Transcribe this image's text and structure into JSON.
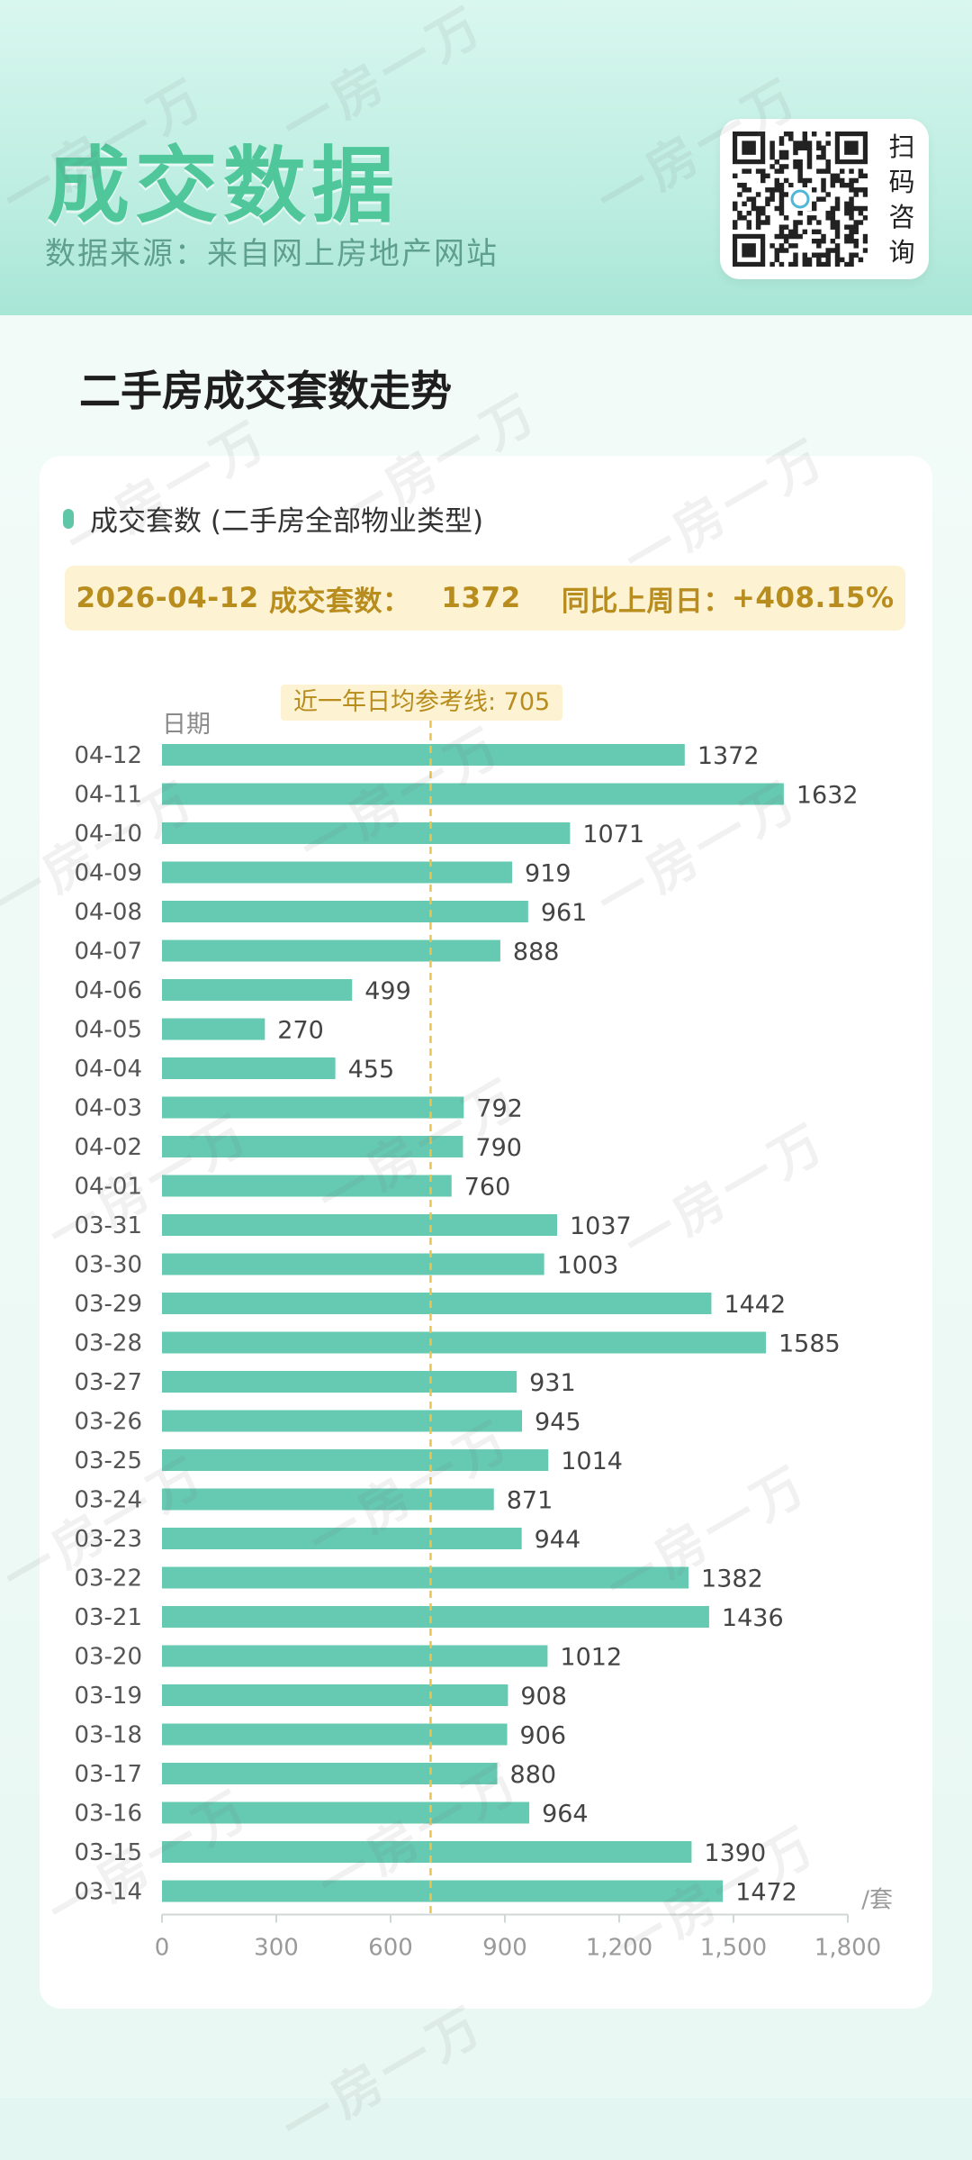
{
  "header": {
    "title": "成交数据",
    "subtitle": "数据来源：来自网上房地产网站",
    "qr_text": [
      "扫",
      "码",
      "咨",
      "询"
    ]
  },
  "section": {
    "title": "二手房成交套数走势"
  },
  "legend": {
    "label": "成交套数 (二手房全部物业类型)"
  },
  "banner": {
    "date": "2026-04-12",
    "count_label": "成交套数：",
    "count": "1372",
    "compare_label": "同比上周日：",
    "compare_value": "+408.15%"
  },
  "watermark": "一房一万",
  "colors": {
    "bar": "#66c9b1",
    "accent": "#4fc79b",
    "ref_line": "#e9c451",
    "banner_bg": "#fdf3d2",
    "banner_text": "#b88c1d"
  },
  "chart_data": {
    "type": "bar",
    "orientation": "horizontal",
    "ylabel": "日期",
    "xunit": "/套",
    "xlim": [
      0,
      1800
    ],
    "xticks": [
      "0",
      "300",
      "600",
      "900",
      "1,200",
      "1,500",
      "1,800"
    ],
    "reference_line": {
      "value": 705,
      "label": "近一年日均参考线: 705"
    },
    "categories": [
      "04-12",
      "04-11",
      "04-10",
      "04-09",
      "04-08",
      "04-07",
      "04-06",
      "04-05",
      "04-04",
      "04-03",
      "04-02",
      "04-01",
      "03-31",
      "03-30",
      "03-29",
      "03-28",
      "03-27",
      "03-26",
      "03-25",
      "03-24",
      "03-23",
      "03-22",
      "03-21",
      "03-20",
      "03-19",
      "03-18",
      "03-17",
      "03-16",
      "03-15",
      "03-14"
    ],
    "values": [
      1372,
      1632,
      1071,
      919,
      961,
      888,
      499,
      270,
      455,
      792,
      790,
      760,
      1037,
      1003,
      1442,
      1585,
      931,
      945,
      1014,
      871,
      944,
      1382,
      1436,
      1012,
      908,
      906,
      880,
      964,
      1390,
      1472
    ]
  }
}
